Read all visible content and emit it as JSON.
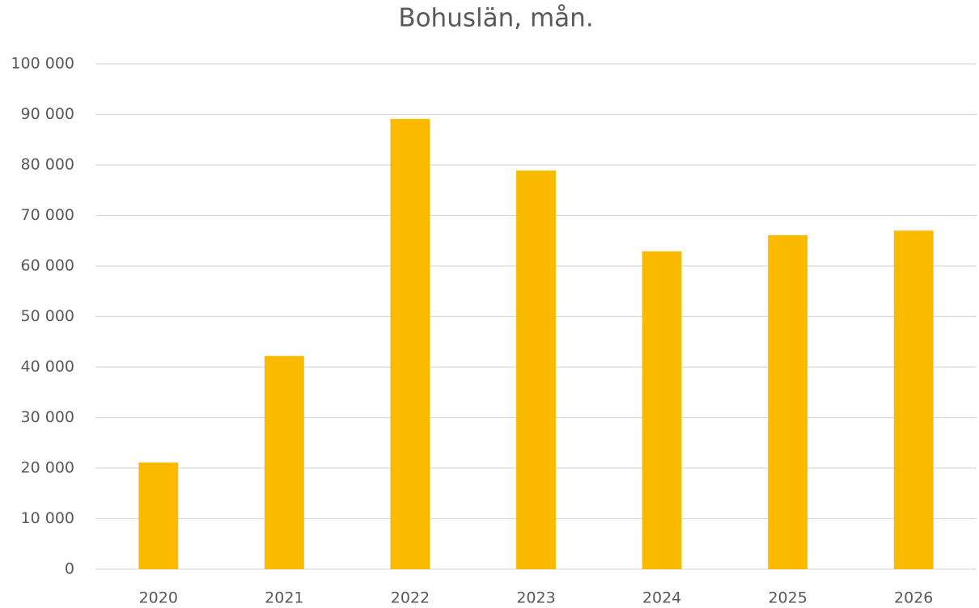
{
  "chart_data": {
    "type": "bar",
    "title": "Bohuslän, mån.",
    "categories": [
      "2020",
      "2021",
      "2022",
      "2023",
      "2024",
      "2025",
      "2026"
    ],
    "values": [
      21100,
      42200,
      89100,
      78900,
      62900,
      66100,
      67000
    ],
    "color": "#fbba00",
    "ylim": [
      0,
      100000
    ],
    "yticks": [
      0,
      {
        "value": 10000,
        "label": "10 000"
      },
      {
        "value": 20000,
        "label": "20 000"
      },
      {
        "value": 30000,
        "label": "30 000"
      },
      {
        "value": 40000,
        "label": "40 000"
      },
      {
        "value": 50000,
        "label": "50 000"
      },
      {
        "value": 60000,
        "label": "60 000"
      },
      {
        "value": 70000,
        "label": "70 000"
      },
      {
        "value": 80000,
        "label": "80 000"
      },
      {
        "value": 90000,
        "label": "90 000"
      },
      {
        "value": 100000,
        "label": "100 000"
      }
    ],
    "grid": true
  }
}
